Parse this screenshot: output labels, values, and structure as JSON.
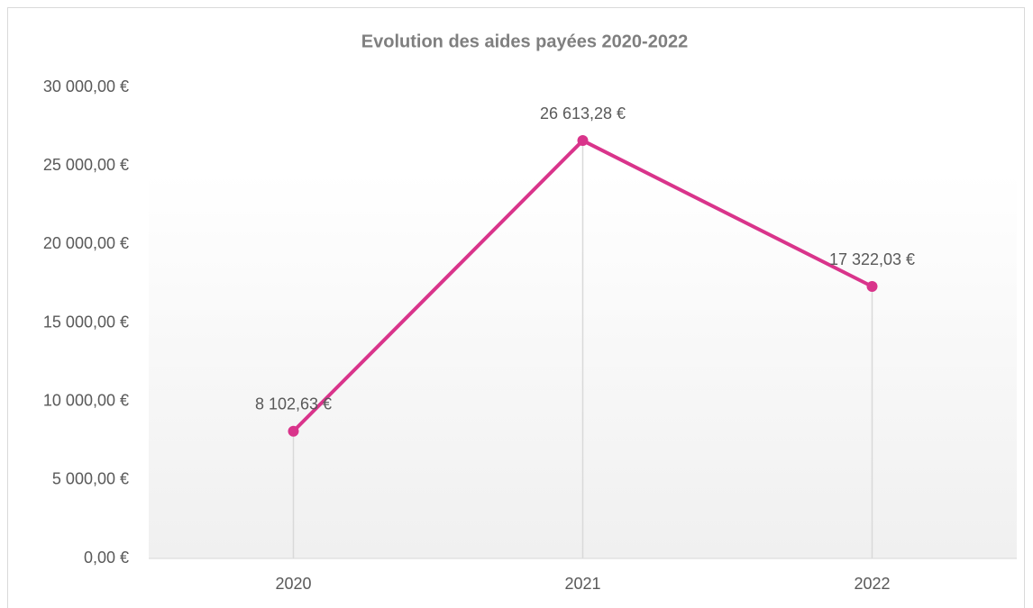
{
  "chart_data": {
    "type": "line",
    "title": "Evolution des aides payées 2020-2022",
    "categories": [
      "2020",
      "2021",
      "2022"
    ],
    "values": [
      8102.63,
      26613.28,
      17322.03
    ],
    "value_labels": [
      "8 102,63 €",
      "26 613,28 €",
      "17 322,03 €"
    ],
    "color": "#d9348b",
    "ylim": [
      0,
      30000
    ],
    "yticks": [
      {
        "value": 0,
        "label": "0,00 €"
      },
      {
        "value": 5000,
        "label": "5 000,00 €"
      },
      {
        "value": 10000,
        "label": "10 000,00 €"
      },
      {
        "value": 15000,
        "label": "15 000,00 €"
      },
      {
        "value": 20000,
        "label": "20 000,00 €"
      },
      {
        "value": 25000,
        "label": "25 000,00 €"
      },
      {
        "value": 30000,
        "label": "30 000,00 €"
      }
    ],
    "grid": false,
    "drop_lines": true,
    "markers": true
  }
}
